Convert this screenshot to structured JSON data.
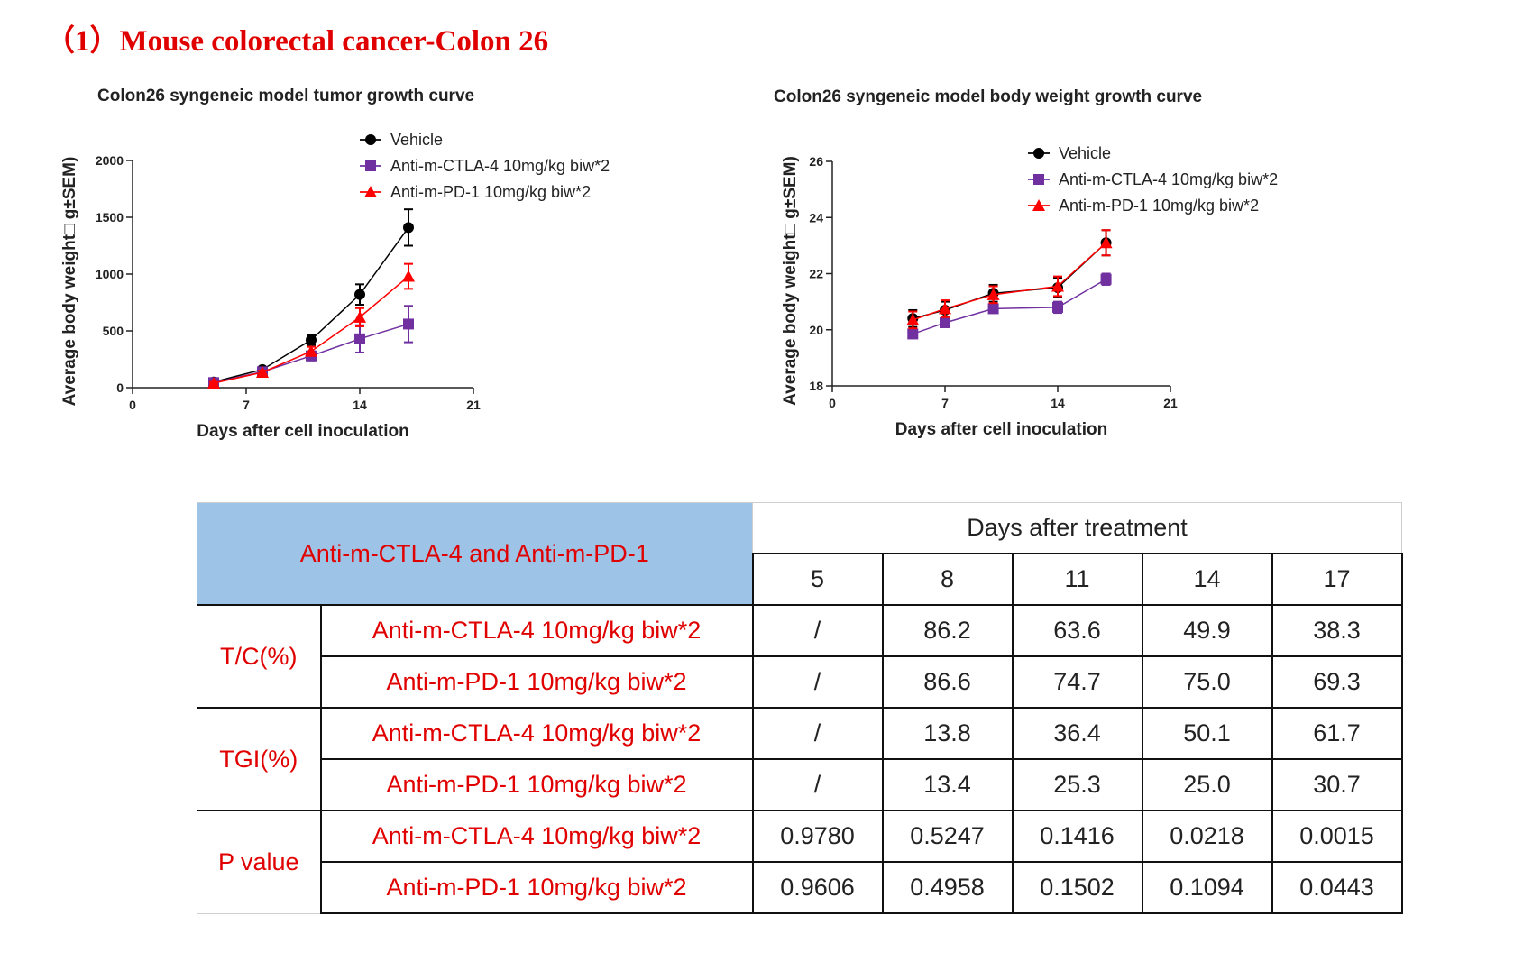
{
  "page_title": "（1）Mouse colorectal cancer-Colon 26",
  "chart_data": [
    {
      "type": "line",
      "title": "Colon26 syngeneic model tumor growth curve",
      "xlabel": "Days after cell inoculation",
      "ylabel": "Average body weight□ g±SEM)",
      "xlim": [
        0,
        21
      ],
      "ylim": [
        0,
        2000
      ],
      "xticks": [
        0,
        7,
        14,
        21
      ],
      "yticks": [
        0,
        500,
        1000,
        1500,
        2000
      ],
      "x": [
        5,
        8,
        11,
        14,
        17
      ],
      "legend_position": "top-right",
      "series": [
        {
          "name": "Vehicle",
          "color": "#000000",
          "marker": "circle",
          "values": [
            50,
            160,
            420,
            820,
            1410
          ],
          "errors": [
            10,
            15,
            45,
            90,
            160
          ]
        },
        {
          "name": "Anti-m-CTLA-4 10mg/kg biw*2",
          "color": "#7030a0",
          "marker": "square",
          "values": [
            45,
            140,
            280,
            430,
            560
          ],
          "errors": [
            10,
            15,
            40,
            120,
            160
          ]
        },
        {
          "name": "Anti-m-PD-1 10mg/kg biw*2",
          "color": "#ff0000",
          "marker": "triangle",
          "values": [
            40,
            135,
            320,
            620,
            980
          ],
          "errors": [
            10,
            15,
            40,
            80,
            110
          ]
        }
      ]
    },
    {
      "type": "line",
      "title": "Colon26 syngeneic model body weight growth curve",
      "xlabel": "Days after cell inoculation",
      "ylabel": "Average body weight□ g±SEM)",
      "xlim": [
        0,
        21
      ],
      "ylim": [
        18,
        26
      ],
      "xticks": [
        0,
        7,
        14,
        21
      ],
      "yticks": [
        18,
        20,
        22,
        24,
        26
      ],
      "x": [
        5,
        7,
        10,
        14,
        17
      ],
      "legend_position": "top-right",
      "series": [
        {
          "name": "Vehicle",
          "color": "#000000",
          "marker": "circle",
          "values": [
            20.4,
            20.7,
            21.3,
            21.5,
            23.1
          ],
          "errors": [
            0.3,
            0.3,
            0.3,
            0.35,
            0.45
          ]
        },
        {
          "name": "Anti-m-CTLA-4 10mg/kg biw*2",
          "color": "#7030a0",
          "marker": "square",
          "values": [
            19.85,
            20.25,
            20.75,
            20.8,
            21.8
          ],
          "errors": [
            0.15,
            0.15,
            0.15,
            0.2,
            0.2
          ]
        },
        {
          "name": "Anti-m-PD-1 10mg/kg biw*2",
          "color": "#ff0000",
          "marker": "triangle",
          "values": [
            20.35,
            20.75,
            21.25,
            21.55,
            23.1
          ],
          "errors": [
            0.3,
            0.3,
            0.3,
            0.35,
            0.45
          ]
        }
      ]
    }
  ],
  "table": {
    "header_group": "Anti-m-CTLA-4 and Anti-m-PD-1",
    "header_days": "Days after treatment",
    "days": [
      "5",
      "8",
      "11",
      "14",
      "17"
    ],
    "groups": [
      {
        "metric": "T/C(%)",
        "rows": [
          {
            "treatment": "Anti-m-CTLA-4 10mg/kg biw*2",
            "values": [
              "/",
              "86.2",
              "63.6",
              "49.9",
              "38.3"
            ]
          },
          {
            "treatment": "Anti-m-PD-1 10mg/kg biw*2",
            "values": [
              "/",
              "86.6",
              "74.7",
              "75.0",
              "69.3"
            ]
          }
        ]
      },
      {
        "metric": "TGI(%)",
        "rows": [
          {
            "treatment": "Anti-m-CTLA-4 10mg/kg biw*2",
            "values": [
              "/",
              "13.8",
              "36.4",
              "50.1",
              "61.7"
            ]
          },
          {
            "treatment": "Anti-m-PD-1 10mg/kg biw*2",
            "values": [
              "/",
              "13.4",
              "25.3",
              "25.0",
              "30.7"
            ]
          }
        ]
      },
      {
        "metric": "P value",
        "rows": [
          {
            "treatment": "Anti-m-CTLA-4 10mg/kg biw*2",
            "values": [
              "0.9780",
              "0.5247",
              "0.1416",
              "0.0218",
              "0.0015"
            ]
          },
          {
            "treatment": "Anti-m-PD-1 10mg/kg biw*2",
            "values": [
              "0.9606",
              "0.4958",
              "0.1502",
              "0.1094",
              "0.0443"
            ]
          }
        ]
      }
    ]
  }
}
